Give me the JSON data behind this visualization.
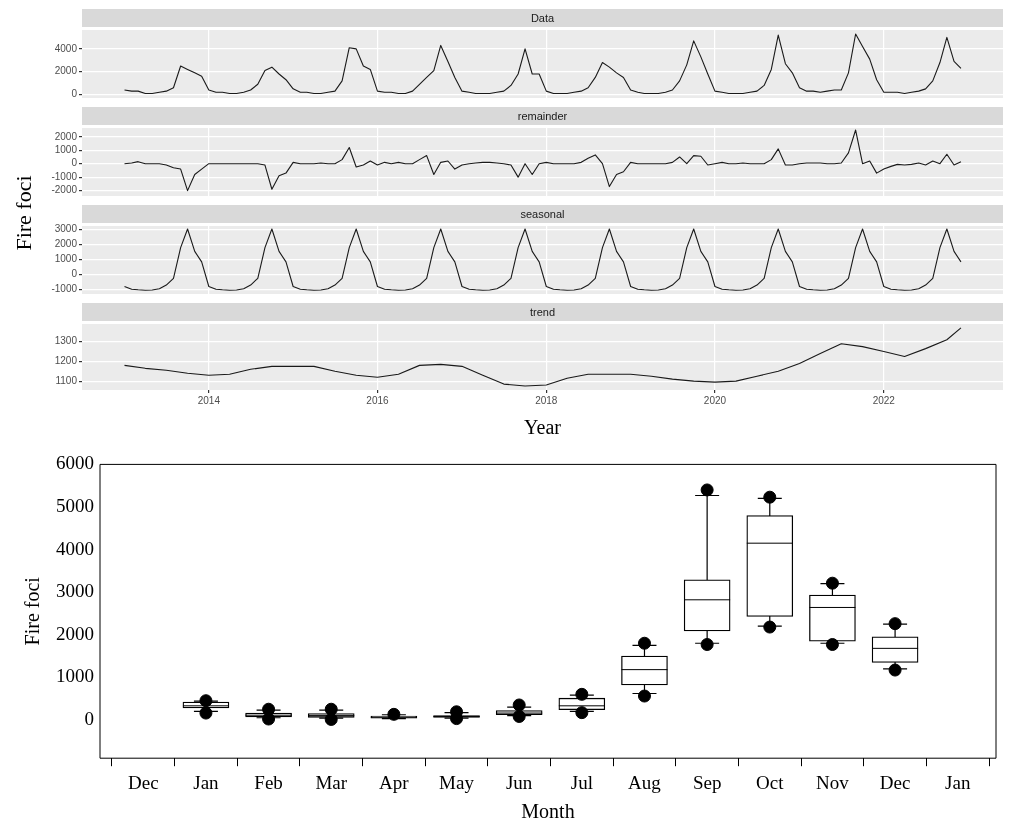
{
  "chart_data": [
    {
      "type": "line",
      "title": "Data",
      "ylabel": "Fire foci",
      "color": "#1a1a1a",
      "grid": true,
      "tick_labels": "y",
      "xlim": [
        "2012-07",
        "2023-06"
      ],
      "xticks": [
        "2014",
        "2016",
        "2018",
        "2020",
        "2022"
      ],
      "ylim": [
        -300,
        5650
      ],
      "yticks": [
        0,
        2000,
        4000
      ],
      "x": [
        "2013-01",
        "2013-02",
        "2013-03",
        "2013-04",
        "2013-05",
        "2013-06",
        "2013-07",
        "2013-08",
        "2013-09",
        "2013-10",
        "2013-11",
        "2013-12",
        "2014-01",
        "2014-02",
        "2014-03",
        "2014-04",
        "2014-05",
        "2014-06",
        "2014-07",
        "2014-08",
        "2014-09",
        "2014-10",
        "2014-11",
        "2014-12",
        "2015-01",
        "2015-02",
        "2015-03",
        "2015-04",
        "2015-05",
        "2015-06",
        "2015-07",
        "2015-08",
        "2015-09",
        "2015-10",
        "2015-11",
        "2015-12",
        "2016-01",
        "2016-02",
        "2016-03",
        "2016-04",
        "2016-05",
        "2016-06",
        "2016-07",
        "2016-08",
        "2016-09",
        "2016-10",
        "2016-11",
        "2016-12",
        "2017-01",
        "2017-02",
        "2017-03",
        "2017-04",
        "2017-05",
        "2017-06",
        "2017-07",
        "2017-08",
        "2017-09",
        "2017-10",
        "2017-11",
        "2017-12",
        "2018-01",
        "2018-02",
        "2018-03",
        "2018-04",
        "2018-05",
        "2018-06",
        "2018-07",
        "2018-08",
        "2018-09",
        "2018-10",
        "2018-11",
        "2018-12",
        "2019-01",
        "2019-02",
        "2019-03",
        "2019-04",
        "2019-05",
        "2019-06",
        "2019-07",
        "2019-08",
        "2019-09",
        "2019-10",
        "2019-11",
        "2019-12",
        "2020-01",
        "2020-02",
        "2020-03",
        "2020-04",
        "2020-05",
        "2020-06",
        "2020-07",
        "2020-08",
        "2020-09",
        "2020-10",
        "2020-11",
        "2020-12",
        "2021-01",
        "2021-02",
        "2021-03",
        "2021-04",
        "2021-05",
        "2021-06",
        "2021-07",
        "2021-08",
        "2021-09",
        "2021-10",
        "2021-11",
        "2021-12",
        "2022-01",
        "2022-02",
        "2022-03",
        "2022-04",
        "2022-05",
        "2022-06",
        "2022-07",
        "2022-08",
        "2022-09",
        "2022-10",
        "2022-11",
        "2022-12"
      ],
      "values": [
        400,
        300,
        300,
        100,
        100,
        200,
        300,
        600,
        2500,
        2200,
        1900,
        1600,
        400,
        200,
        200,
        100,
        100,
        200,
        400,
        900,
        2100,
        2400,
        1800,
        1300,
        500,
        200,
        200,
        100,
        100,
        200,
        300,
        1200,
        4100,
        4000,
        2500,
        2200,
        300,
        200,
        200,
        100,
        100,
        300,
        900,
        1500,
        2100,
        4300,
        2900,
        1500,
        300,
        200,
        100,
        100,
        100,
        200,
        300,
        800,
        1800,
        4000,
        1800,
        1800,
        300,
        100,
        100,
        100,
        200,
        300,
        600,
        1500,
        2800,
        2400,
        1900,
        1500,
        400,
        200,
        100,
        100,
        100,
        200,
        400,
        1200,
        2600,
        4700,
        3300,
        1800,
        300,
        200,
        100,
        100,
        100,
        200,
        300,
        800,
        2200,
        5200,
        2700,
        1900,
        600,
        300,
        300,
        200,
        300,
        400,
        400,
        1900,
        5300,
        4200,
        3100,
        1300,
        200,
        200,
        200,
        100,
        200,
        300,
        500,
        1200,
        2800,
        5000,
        2900,
        2300
      ]
    },
    {
      "type": "line",
      "title": "remainder",
      "color": "#1a1a1a",
      "grid": true,
      "tick_labels": "y",
      "xlim": [
        "2012-07",
        "2023-06"
      ],
      "xticks": [
        "2014",
        "2016",
        "2018",
        "2020",
        "2022"
      ],
      "ylim": [
        -2400,
        2650
      ],
      "yticks": [
        -2000,
        -1000,
        0,
        1000,
        2000
      ],
      "x": [
        "2013-01",
        "2013-02",
        "2013-03",
        "2013-04",
        "2013-05",
        "2013-06",
        "2013-07",
        "2013-08",
        "2013-09",
        "2013-10",
        "2013-11",
        "2013-12",
        "2014-01",
        "2014-02",
        "2014-03",
        "2014-04",
        "2014-05",
        "2014-06",
        "2014-07",
        "2014-08",
        "2014-09",
        "2014-10",
        "2014-11",
        "2014-12",
        "2015-01",
        "2015-02",
        "2015-03",
        "2015-04",
        "2015-05",
        "2015-06",
        "2015-07",
        "2015-08",
        "2015-09",
        "2015-10",
        "2015-11",
        "2015-12",
        "2016-01",
        "2016-02",
        "2016-03",
        "2016-04",
        "2016-05",
        "2016-06",
        "2016-07",
        "2016-08",
        "2016-09",
        "2016-10",
        "2016-11",
        "2016-12",
        "2017-01",
        "2017-02",
        "2017-03",
        "2017-04",
        "2017-05",
        "2017-06",
        "2017-07",
        "2017-08",
        "2017-09",
        "2017-10",
        "2017-11",
        "2017-12",
        "2018-01",
        "2018-02",
        "2018-03",
        "2018-04",
        "2018-05",
        "2018-06",
        "2018-07",
        "2018-08",
        "2018-09",
        "2018-10",
        "2018-11",
        "2018-12",
        "2019-01",
        "2019-02",
        "2019-03",
        "2019-04",
        "2019-05",
        "2019-06",
        "2019-07",
        "2019-08",
        "2019-09",
        "2019-10",
        "2019-11",
        "2019-12",
        "2020-01",
        "2020-02",
        "2020-03",
        "2020-04",
        "2020-05",
        "2020-06",
        "2020-07",
        "2020-08",
        "2020-09",
        "2020-10",
        "2020-11",
        "2020-12",
        "2021-01",
        "2021-02",
        "2021-03",
        "2021-04",
        "2021-05",
        "2021-06",
        "2021-07",
        "2021-08",
        "2021-09",
        "2021-10",
        "2021-11",
        "2021-12",
        "2022-01",
        "2022-02",
        "2022-03",
        "2022-04",
        "2022-05",
        "2022-06",
        "2022-07",
        "2022-08",
        "2022-09",
        "2022-10",
        "2022-11",
        "2022-12"
      ],
      "values": [
        0,
        50,
        150,
        0,
        0,
        0,
        -100,
        -300,
        -400,
        -2000,
        -800,
        -400,
        0,
        0,
        0,
        0,
        0,
        0,
        0,
        0,
        -100,
        -1900,
        -900,
        -700,
        100,
        0,
        0,
        0,
        50,
        0,
        0,
        300,
        1200,
        -250,
        -100,
        200,
        -100,
        100,
        0,
        100,
        0,
        0,
        300,
        600,
        -800,
        100,
        200,
        -400,
        -100,
        0,
        50,
        100,
        100,
        50,
        0,
        -100,
        -1000,
        0,
        -800,
        0,
        100,
        0,
        0,
        0,
        0,
        100,
        400,
        650,
        0,
        -1700,
        -800,
        -600,
        100,
        0,
        0,
        0,
        0,
        0,
        100,
        500,
        0,
        600,
        550,
        -100,
        0,
        100,
        0,
        0,
        50,
        0,
        0,
        0,
        300,
        1100,
        -100,
        -100,
        0,
        50,
        50,
        50,
        0,
        0,
        50,
        800,
        2500,
        0,
        200,
        -700,
        -400,
        -200,
        -50,
        -100,
        -50,
        50,
        -100,
        200,
        0,
        700,
        -100,
        150
      ]
    },
    {
      "type": "line",
      "title": "seasonal",
      "color": "#1a1a1a",
      "grid": true,
      "tick_labels": "y",
      "xlim": [
        "2012-07",
        "2023-06"
      ],
      "xticks": [
        "2014",
        "2016",
        "2018",
        "2020",
        "2022"
      ],
      "ylim": [
        -1300,
        3250
      ],
      "yticks": [
        -1000,
        0,
        1000,
        2000,
        3000
      ],
      "x": [
        "2013-01",
        "2013-02",
        "2013-03",
        "2013-04",
        "2013-05",
        "2013-06",
        "2013-07",
        "2013-08",
        "2013-09",
        "2013-10",
        "2013-11",
        "2013-12",
        "2014-01",
        "2014-02",
        "2014-03",
        "2014-04",
        "2014-05",
        "2014-06",
        "2014-07",
        "2014-08",
        "2014-09",
        "2014-10",
        "2014-11",
        "2014-12",
        "2015-01",
        "2015-02",
        "2015-03",
        "2015-04",
        "2015-05",
        "2015-06",
        "2015-07",
        "2015-08",
        "2015-09",
        "2015-10",
        "2015-11",
        "2015-12",
        "2016-01",
        "2016-02",
        "2016-03",
        "2016-04",
        "2016-05",
        "2016-06",
        "2016-07",
        "2016-08",
        "2016-09",
        "2016-10",
        "2016-11",
        "2016-12",
        "2017-01",
        "2017-02",
        "2017-03",
        "2017-04",
        "2017-05",
        "2017-06",
        "2017-07",
        "2017-08",
        "2017-09",
        "2017-10",
        "2017-11",
        "2017-12",
        "2018-01",
        "2018-02",
        "2018-03",
        "2018-04",
        "2018-05",
        "2018-06",
        "2018-07",
        "2018-08",
        "2018-09",
        "2018-10",
        "2018-11",
        "2018-12",
        "2019-01",
        "2019-02",
        "2019-03",
        "2019-04",
        "2019-05",
        "2019-06",
        "2019-07",
        "2019-08",
        "2019-09",
        "2019-10",
        "2019-11",
        "2019-12",
        "2020-01",
        "2020-02",
        "2020-03",
        "2020-04",
        "2020-05",
        "2020-06",
        "2020-07",
        "2020-08",
        "2020-09",
        "2020-10",
        "2020-11",
        "2020-12",
        "2021-01",
        "2021-02",
        "2021-03",
        "2021-04",
        "2021-05",
        "2021-06",
        "2021-07",
        "2021-08",
        "2021-09",
        "2021-10",
        "2021-11",
        "2021-12",
        "2022-01",
        "2022-02",
        "2022-03",
        "2022-04",
        "2022-05",
        "2022-06",
        "2022-07",
        "2022-08",
        "2022-09",
        "2022-10",
        "2022-11",
        "2022-12"
      ],
      "values": [
        -800,
        -980,
        -1020,
        -1050,
        -1030,
        -950,
        -700,
        -250,
        1800,
        3050,
        1550,
        850,
        -800,
        -980,
        -1020,
        -1050,
        -1030,
        -950,
        -700,
        -250,
        1800,
        3050,
        1550,
        850,
        -800,
        -980,
        -1020,
        -1050,
        -1030,
        -950,
        -700,
        -250,
        1800,
        3050,
        1550,
        850,
        -800,
        -980,
        -1020,
        -1050,
        -1030,
        -950,
        -700,
        -250,
        1800,
        3050,
        1550,
        850,
        -800,
        -980,
        -1020,
        -1050,
        -1030,
        -950,
        -700,
        -250,
        1800,
        3050,
        1550,
        850,
        -800,
        -980,
        -1020,
        -1050,
        -1030,
        -950,
        -700,
        -250,
        1800,
        3050,
        1550,
        850,
        -800,
        -980,
        -1020,
        -1050,
        -1030,
        -950,
        -700,
        -250,
        1800,
        3050,
        1550,
        850,
        -800,
        -980,
        -1020,
        -1050,
        -1030,
        -950,
        -700,
        -250,
        1800,
        3050,
        1550,
        850,
        -800,
        -980,
        -1020,
        -1050,
        -1030,
        -950,
        -700,
        -250,
        1800,
        3050,
        1550,
        850,
        -800,
        -980,
        -1020,
        -1050,
        -1030,
        -950,
        -700,
        -250,
        1800,
        3050,
        1550,
        850
      ]
    },
    {
      "type": "line",
      "title": "trend",
      "xlabel": "Year",
      "color": "#1a1a1a",
      "grid": true,
      "xlim": [
        "2012-07",
        "2023-06"
      ],
      "xticks": [
        "2014",
        "2016",
        "2018",
        "2020",
        "2022"
      ],
      "ylim": [
        1055,
        1390
      ],
      "yticks": [
        1100,
        1200,
        1300
      ],
      "x": [
        "2013-01",
        "2013-04",
        "2013-07",
        "2013-10",
        "2014-01",
        "2014-04",
        "2014-07",
        "2014-10",
        "2015-01",
        "2015-04",
        "2015-07",
        "2015-10",
        "2016-01",
        "2016-04",
        "2016-07",
        "2016-10",
        "2017-01",
        "2017-04",
        "2017-07",
        "2017-10",
        "2018-01",
        "2018-04",
        "2018-07",
        "2018-10",
        "2019-01",
        "2019-04",
        "2019-07",
        "2019-10",
        "2020-01",
        "2020-04",
        "2020-07",
        "2020-10",
        "2021-01",
        "2021-04",
        "2021-07",
        "2021-10",
        "2022-01",
        "2022-04",
        "2022-07",
        "2022-10",
        "2022-12"
      ],
      "values": [
        1180,
        1165,
        1155,
        1140,
        1130,
        1135,
        1160,
        1175,
        1175,
        1175,
        1150,
        1130,
        1120,
        1135,
        1180,
        1185,
        1175,
        1130,
        1085,
        1075,
        1080,
        1115,
        1135,
        1135,
        1135,
        1125,
        1110,
        1100,
        1095,
        1100,
        1125,
        1150,
        1190,
        1240,
        1290,
        1275,
        1250,
        1225,
        1265,
        1310,
        1370
      ]
    },
    {
      "type": "box",
      "xlabel": "Month",
      "ylabel": "Fire foci",
      "categories": [
        "Dec",
        "Jan",
        "Feb",
        "Mar",
        "Apr",
        "May",
        "Jun",
        "Jul",
        "Aug",
        "Sep",
        "Oct",
        "Nov",
        "Dec",
        "Jan"
      ],
      "ylim": [
        -900,
        6000
      ],
      "yticks": [
        0,
        1000,
        2000,
        3000,
        4000,
        5000,
        6000
      ],
      "boxes": [
        null,
        {
          "low": 200,
          "q1": 280,
          "median": 330,
          "q3": 420,
          "high": 440,
          "outliers": [
            160,
            450
          ]
        },
        {
          "low": 50,
          "q1": 70,
          "median": 110,
          "q3": 160,
          "high": 230,
          "outliers": [
            20,
            250
          ]
        },
        {
          "low": 40,
          "q1": 60,
          "median": 100,
          "q3": 150,
          "high": 230,
          "outliers": [
            10,
            250
          ]
        },
        {
          "low": 30,
          "q1": 40,
          "median": 60,
          "q3": 90,
          "high": 120,
          "outliers": [
            130
          ]
        },
        {
          "low": 40,
          "q1": 60,
          "median": 80,
          "q3": 100,
          "high": 170,
          "outliers": [
            30,
            190
          ]
        },
        {
          "low": 100,
          "q1": 120,
          "median": 160,
          "q3": 220,
          "high": 300,
          "outliers": [
            80,
            350
          ]
        },
        {
          "low": 200,
          "q1": 240,
          "median": 330,
          "q3": 510,
          "high": 580,
          "outliers": [
            170,
            600
          ]
        },
        {
          "low": 620,
          "q1": 820,
          "median": 1180,
          "q3": 1500,
          "high": 1750,
          "outliers": [
            560,
            1800
          ]
        },
        {
          "low": 1800,
          "q1": 2090,
          "median": 2820,
          "q3": 3290,
          "high": 5270,
          "outliers": [
            1770,
            5400
          ]
        },
        {
          "low": 2200,
          "q1": 2430,
          "median": 4150,
          "q3": 4800,
          "high": 5200,
          "outliers": [
            2180,
            5230
          ]
        },
        {
          "low": 1800,
          "q1": 1850,
          "median": 2640,
          "q3": 2930,
          "high": 3200,
          "outliers": [
            1770,
            3210
          ]
        },
        {
          "low": 1200,
          "q1": 1350,
          "median": 1680,
          "q3": 1950,
          "high": 2250,
          "outliers": [
            1170,
            2260
          ]
        },
        null
      ]
    }
  ]
}
